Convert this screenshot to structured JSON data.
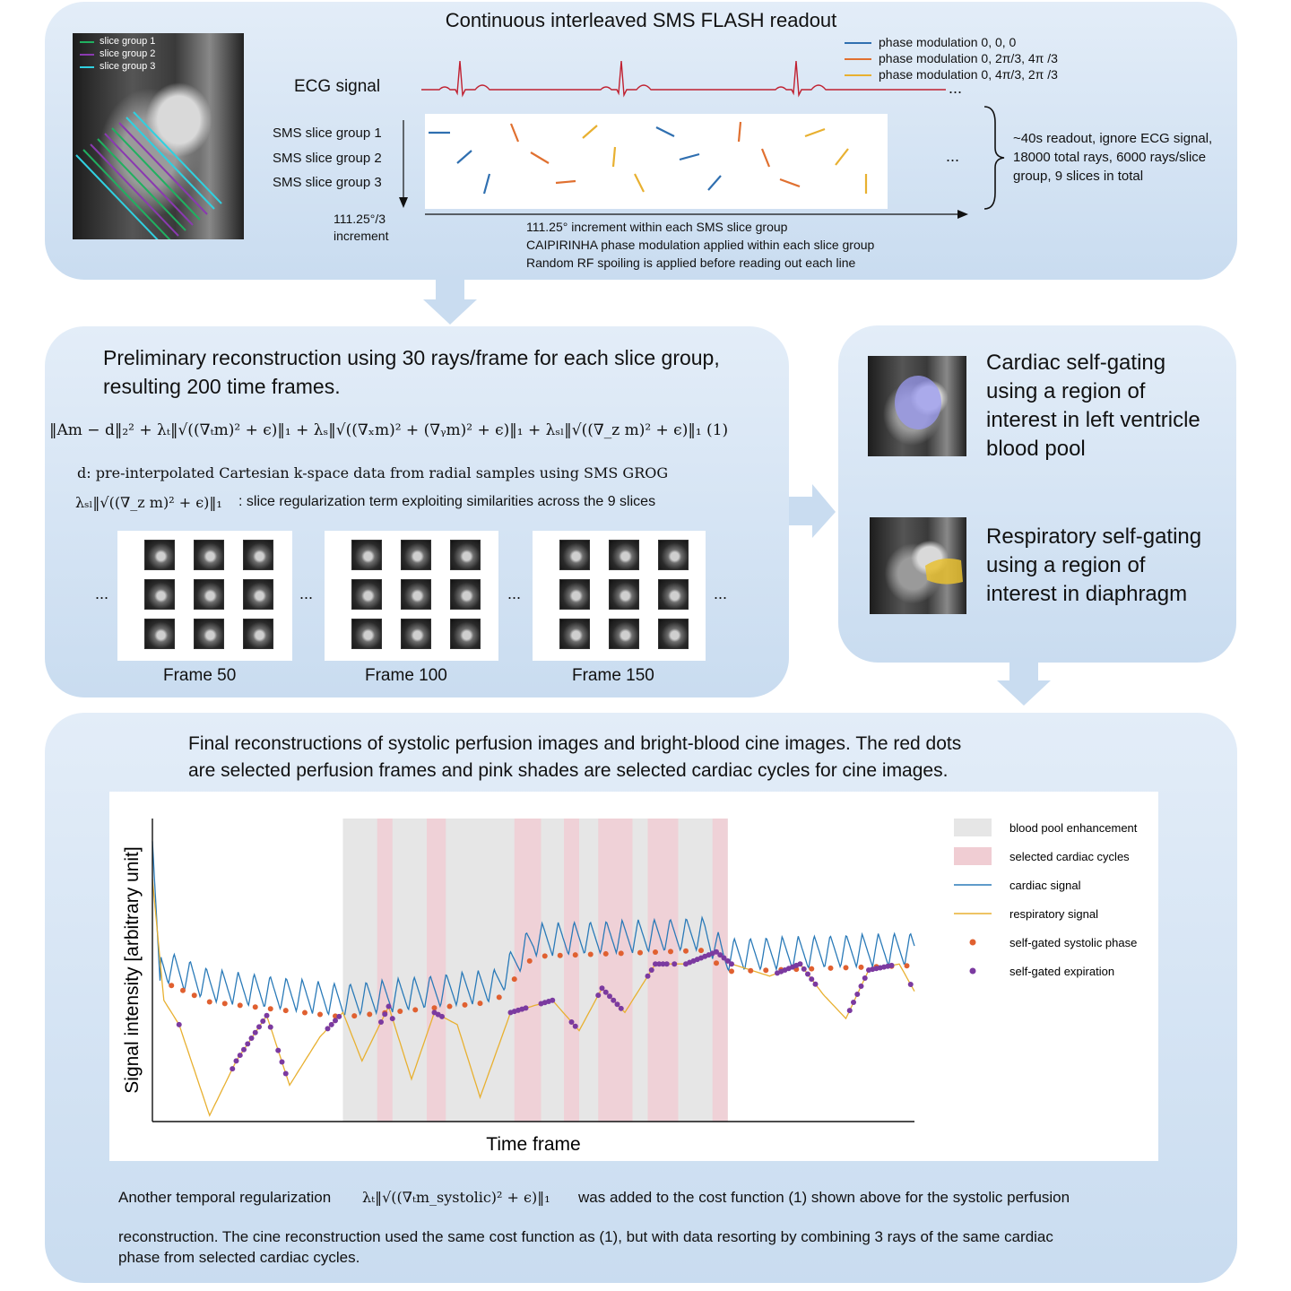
{
  "top": {
    "title": "Continuous interleaved SMS FLASH readout",
    "slice_groups_overlay": [
      "slice group 1",
      "slice group 2",
      "slice group 3"
    ],
    "ecg_label": "ECG signal",
    "phase_legend": [
      {
        "label": "phase modulation 0, 0, 0",
        "color": "#2f6fb0"
      },
      {
        "label": "phase modulation 0, 2π/3, 4π /3",
        "color": "#e07030"
      },
      {
        "label": "phase modulation 0, 4π/3, 2π /3",
        "color": "#e8b030"
      }
    ],
    "sms_groups": [
      "SMS slice group 1",
      "SMS slice group 2",
      "SMS slice group 3"
    ],
    "vertical_increment": [
      "111.25°/3",
      "increment"
    ],
    "horizontal_notes": [
      "111.25° increment within each SMS slice group",
      "CAIPIRINHA phase modulation applied within each slice group",
      "Random RF spoiling is applied before reading out each line"
    ],
    "readout_note": [
      "~40s readout, ignore ECG signal,",
      "18000 total rays, 6000 rays/slice",
      "group, 9 slices in total"
    ],
    "ellipsis": "..."
  },
  "prelim": {
    "title": "Preliminary reconstruction using 30 rays/frame for each slice group, resulting 200 time frames.",
    "eq1_a": "‖Am − d‖₂² + λₜ‖√((∇ₜm)² + ϵ)‖₁ + λₛ‖√((∇ₓm)² + (∇ᵧm)² + ϵ)‖₁ + λₛₗ‖√((∇_z m)² + ϵ)‖₁ (1)",
    "d_desc": "d: pre-interpolated Cartesian k-space data from radial samples using SMS GROG",
    "sl_term": "λₛₗ‖√((∇_z m)² + ϵ)‖₁",
    "sl_desc": ": slice regularization term exploiting similarities across the 9 slices",
    "frames": [
      "Frame 50",
      "Frame 100",
      "Frame 150"
    ],
    "ellipsis": "..."
  },
  "gating": {
    "cardiac": "Cardiac self-gating using a region of interest in left ventricle blood pool",
    "resp": "Respiratory self-gating using a region of interest in diaphragm"
  },
  "final": {
    "title_l1": "Final reconstructions of systolic perfusion images and bright-blood cine images. The red dots",
    "title_l2": "are selected perfusion frames and pink shades are selected cardiac cycles for cine images.",
    "note_a": "Another temporal regularization",
    "note_term": "λₜ‖√((∇ₜm_systolic)² + ϵ)‖₁",
    "note_b": "was added to the cost function (1) shown above for the systolic perfusion",
    "note_c": "reconstruction. The cine reconstruction used the same cost function as (1), but with data resorting by combining 3 rays of the same cardiac",
    "note_d": "phase from selected cardiac cycles."
  },
  "chart_data": {
    "type": "line",
    "xlabel": "Time frame",
    "ylabel": "Signal intensity [arbitrary unit]",
    "legend": [
      {
        "label": "blood pool enhancement",
        "kind": "patch",
        "color": "#e6e6e6"
      },
      {
        "label": "selected cardiac cycles",
        "kind": "patch",
        "color": "#f0cdd3"
      },
      {
        "label": "cardiac signal",
        "kind": "line",
        "color": "#2a7ab8"
      },
      {
        "label": "respiratory signal",
        "kind": "line",
        "color": "#e8b030"
      },
      {
        "label": "self-gated systolic phase",
        "kind": "dot",
        "color": "#e06030"
      },
      {
        "label": "self-gated expiration",
        "kind": "dot",
        "color": "#7b3aa0"
      }
    ],
    "legend_position": "right",
    "grid": false,
    "xlim": [
      0,
      200
    ],
    "ylim": [
      0,
      1
    ],
    "enhancement_range": [
      50,
      151
    ],
    "selected_cycles": [
      [
        59,
        63
      ],
      [
        72,
        77
      ],
      [
        95,
        102
      ],
      [
        108,
        112
      ],
      [
        117,
        126
      ],
      [
        130,
        138
      ],
      [
        147,
        151
      ]
    ],
    "cardiac": {
      "baseline": [
        [
          0,
          0.98
        ],
        [
          2,
          0.52
        ],
        [
          15,
          0.45
        ],
        [
          50,
          0.4
        ],
        [
          90,
          0.45
        ],
        [
          100,
          0.6
        ],
        [
          145,
          0.62
        ],
        [
          150,
          0.55
        ],
        [
          200,
          0.57
        ]
      ],
      "period": 4.2,
      "amplitude": 0.11
    },
    "respiratory": {
      "points": [
        [
          0,
          0.8
        ],
        [
          3,
          0.4
        ],
        [
          7,
          0.32
        ],
        [
          15,
          0.02
        ],
        [
          22,
          0.2
        ],
        [
          30,
          0.35
        ],
        [
          36,
          0.12
        ],
        [
          44,
          0.28
        ],
        [
          50,
          0.36
        ],
        [
          55,
          0.2
        ],
        [
          62,
          0.38
        ],
        [
          68,
          0.14
        ],
        [
          74,
          0.36
        ],
        [
          80,
          0.32
        ],
        [
          86,
          0.08
        ],
        [
          94,
          0.36
        ],
        [
          105,
          0.4
        ],
        [
          112,
          0.3
        ],
        [
          118,
          0.44
        ],
        [
          124,
          0.36
        ],
        [
          132,
          0.52
        ],
        [
          140,
          0.52
        ],
        [
          148,
          0.56
        ],
        [
          152,
          0.52
        ],
        [
          162,
          0.48
        ],
        [
          170,
          0.52
        ],
        [
          176,
          0.42
        ],
        [
          182,
          0.34
        ],
        [
          188,
          0.5
        ],
        [
          196,
          0.52
        ],
        [
          200,
          0.43
        ]
      ]
    },
    "systolic_x": [
      5,
      8,
      11,
      15,
      19,
      23,
      27,
      31,
      35,
      40,
      44,
      48,
      53,
      57,
      61,
      65,
      69,
      74,
      78,
      82,
      86,
      91,
      95,
      99,
      103,
      107,
      111,
      115,
      119,
      123,
      128,
      132,
      136,
      140,
      144,
      148,
      152,
      157,
      161,
      165,
      169,
      173,
      178,
      182,
      186,
      190,
      194,
      198
    ],
    "expiration_x": [
      7,
      21,
      22,
      23,
      24,
      25,
      26,
      27,
      28,
      29,
      30,
      31,
      33,
      34,
      35,
      46,
      47,
      48,
      49,
      60,
      61,
      62,
      63,
      74,
      75,
      76,
      94,
      95,
      96,
      97,
      98,
      102,
      103,
      104,
      105,
      110,
      111,
      117,
      118,
      119,
      120,
      121,
      122,
      123,
      130,
      131,
      132,
      133,
      134,
      135,
      137,
      140,
      141,
      142,
      143,
      144,
      145,
      146,
      147,
      148,
      149,
      150,
      151,
      152,
      164,
      165,
      166,
      167,
      168,
      169,
      170,
      171,
      172,
      173,
      174,
      183,
      184,
      185,
      186,
      187,
      188,
      189,
      190,
      191,
      192,
      193,
      194,
      199
    ]
  }
}
